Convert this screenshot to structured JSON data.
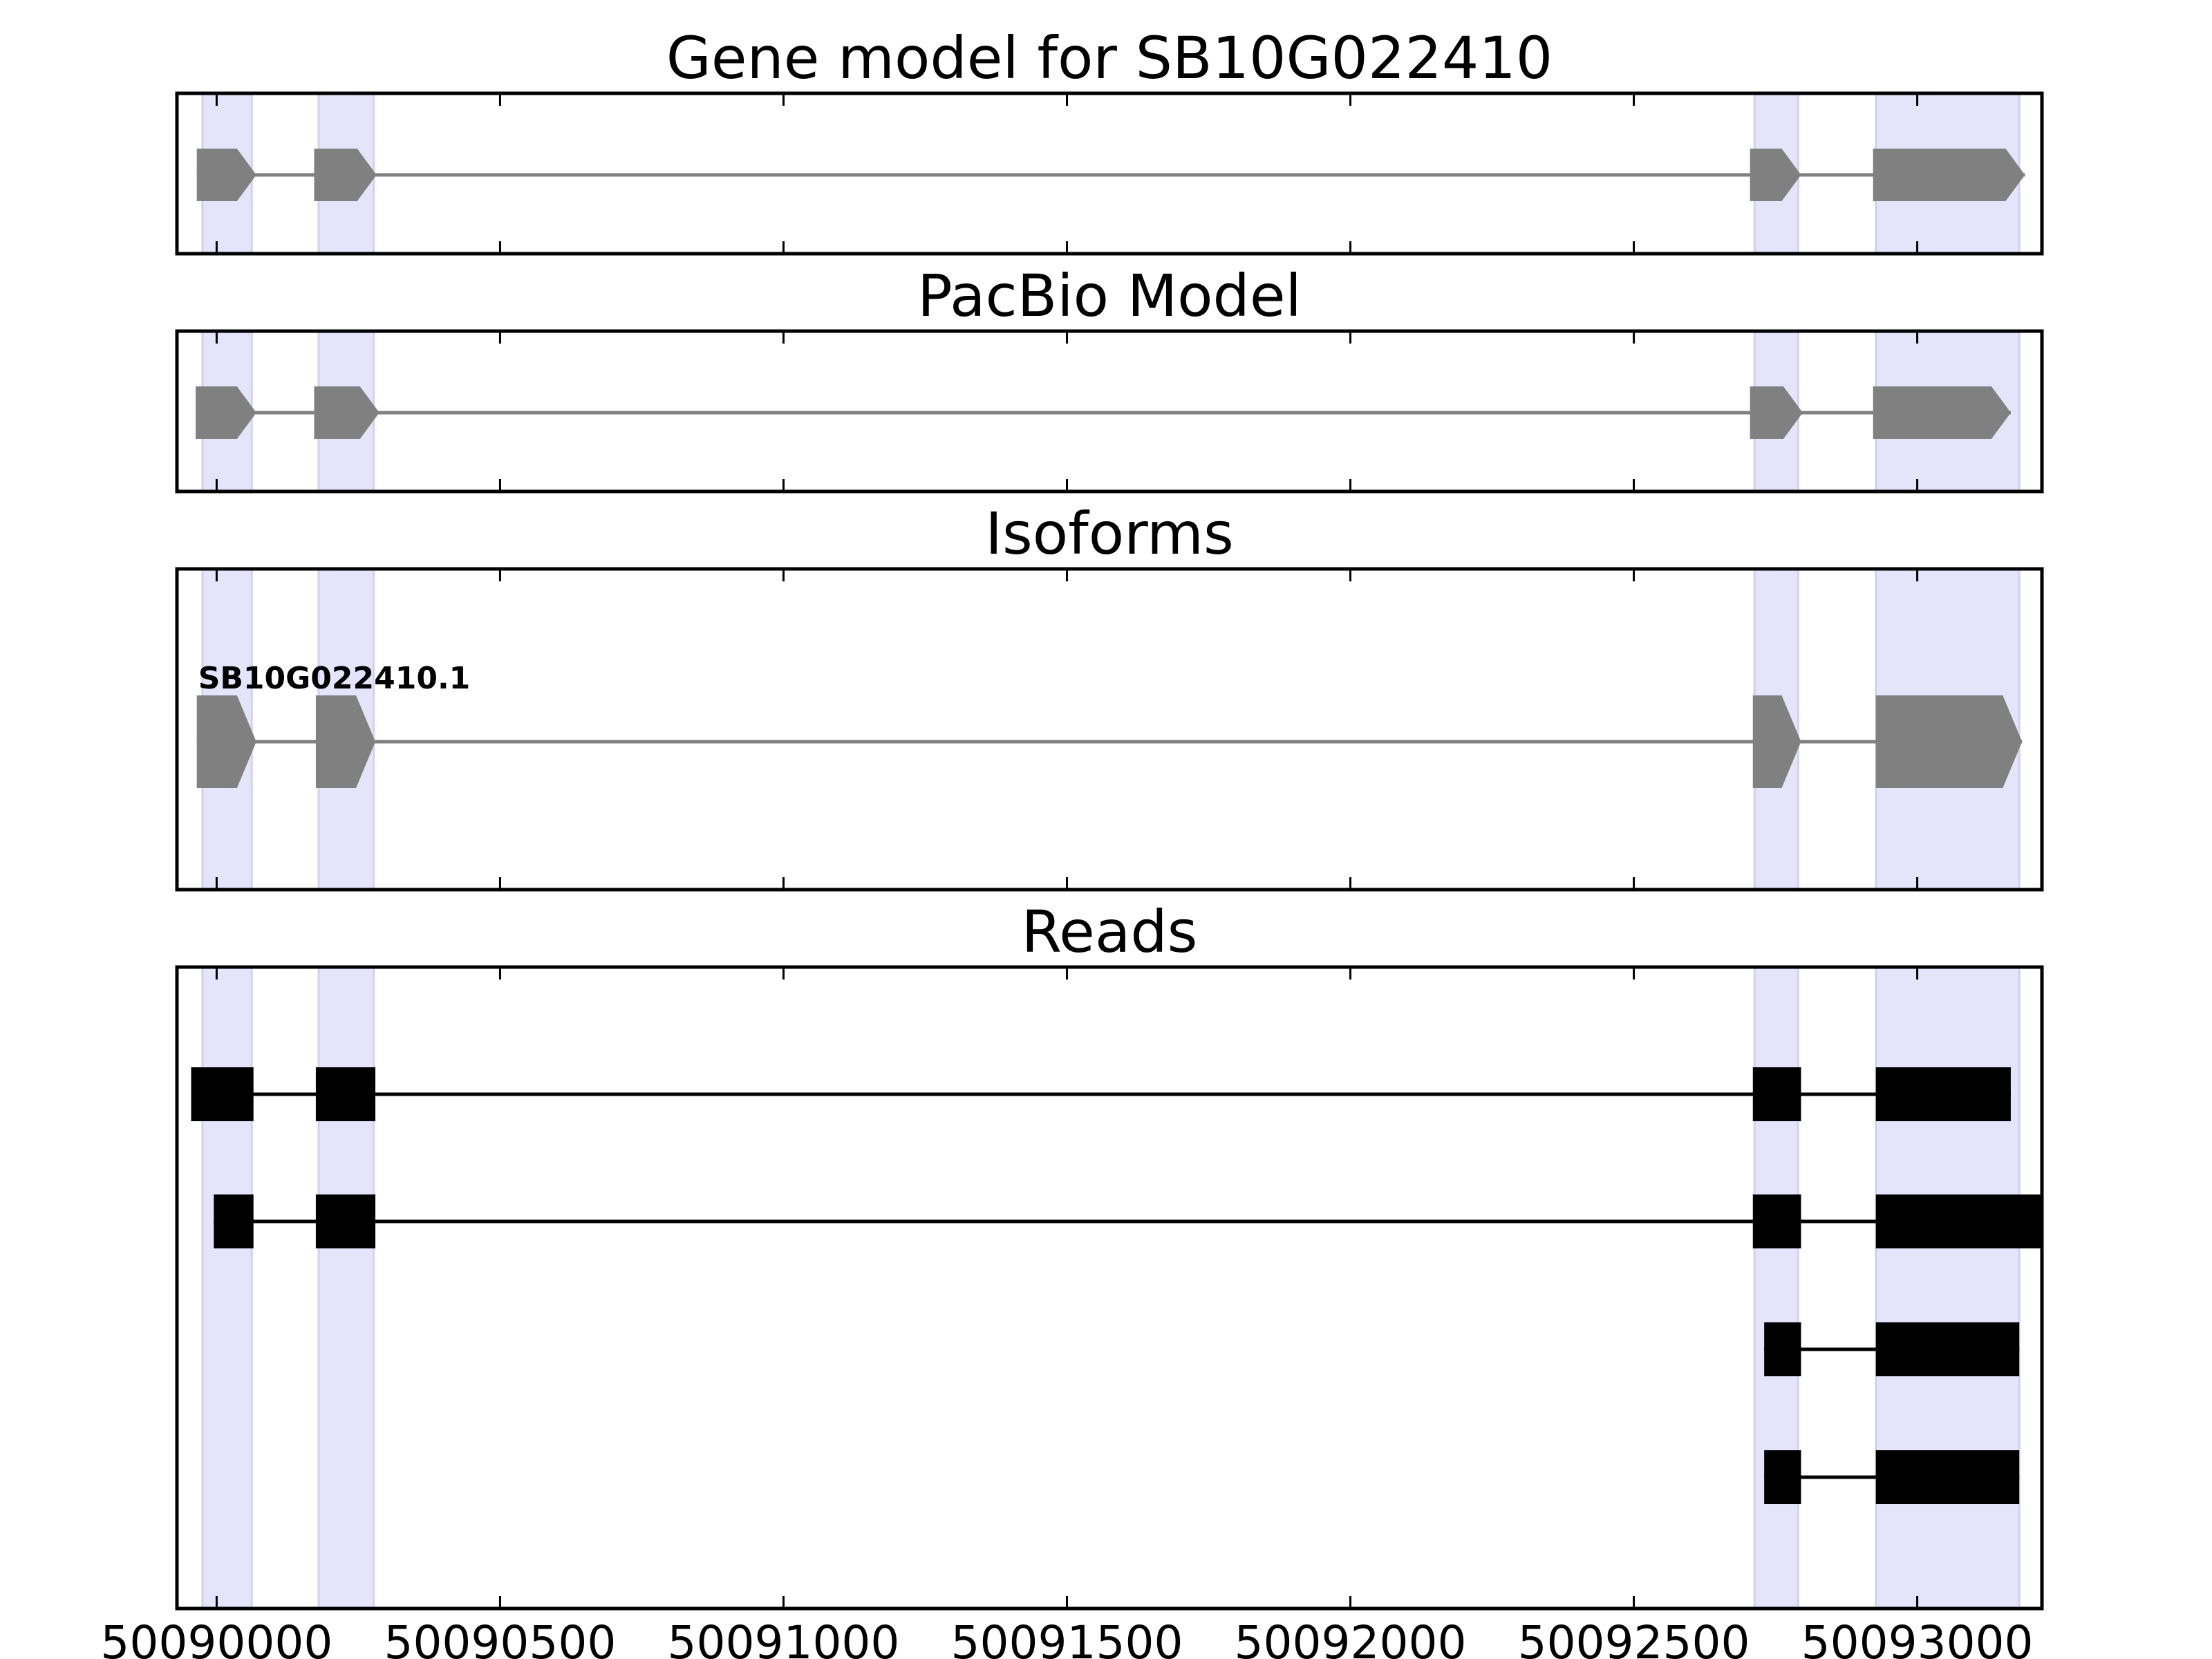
{
  "chart_data": {
    "type": "gene-track",
    "title": "Gene model for SB10G022410",
    "xlim": [
      50089930,
      50093220
    ],
    "x_ticks": [
      50090000,
      50090500,
      50091000,
      50091500,
      50092000,
      50092500,
      50093000
    ],
    "x_tick_labels": [
      "50090000",
      "50090500",
      "50091000",
      "50091500",
      "50092000",
      "50092500",
      "50093000"
    ],
    "highlight_regions": [
      [
        50089975,
        50090062
      ],
      [
        50090180,
        50090277
      ],
      [
        50092713,
        50092790
      ],
      [
        50092927,
        50093180
      ]
    ],
    "colors": {
      "highlight": "#e4e4fb",
      "highlight_edge": "#d2d2ef",
      "model": "#808080",
      "read": "#000000",
      "frame": "#000000"
    },
    "panels": [
      {
        "title": "Gene model for SB10G022410",
        "kind": "model",
        "strand": "+",
        "exons": [
          [
            50089965,
            50090070
          ],
          [
            50090172,
            50090282
          ],
          [
            50092705,
            50092795
          ],
          [
            50092922,
            50093190
          ]
        ]
      },
      {
        "title": "PacBio Model",
        "kind": "model",
        "strand": "+",
        "exons": [
          [
            50089963,
            50090070
          ],
          [
            50090172,
            50090287
          ],
          [
            50092705,
            50092798
          ],
          [
            50092922,
            50093165
          ]
        ]
      },
      {
        "title": "Isoforms",
        "kind": "isoform",
        "isoforms": [
          {
            "label": "SB10G022410.1",
            "strand": "+",
            "exons": [
              [
                50089965,
                50090070
              ],
              [
                50090175,
                50090280
              ],
              [
                50092710,
                50092795
              ],
              [
                50092927,
                50093185
              ]
            ]
          }
        ]
      },
      {
        "title": "Reads",
        "kind": "reads",
        "reads": [
          {
            "exons": [
              [
                50089955,
                50090065
              ],
              [
                50090175,
                50090280
              ],
              [
                50092710,
                50092795
              ],
              [
                50092927,
                50093165
              ]
            ]
          },
          {
            "exons": [
              [
                50089995,
                50090065
              ],
              [
                50090175,
                50090280
              ],
              [
                50092710,
                50092795
              ],
              [
                50092927,
                50093220
              ]
            ]
          },
          {
            "exons": [
              [
                50092730,
                50092795
              ],
              [
                50092927,
                50093180
              ]
            ]
          },
          {
            "exons": [
              [
                50092730,
                50092795
              ],
              [
                50092927,
                50093180
              ]
            ]
          }
        ]
      }
    ]
  }
}
